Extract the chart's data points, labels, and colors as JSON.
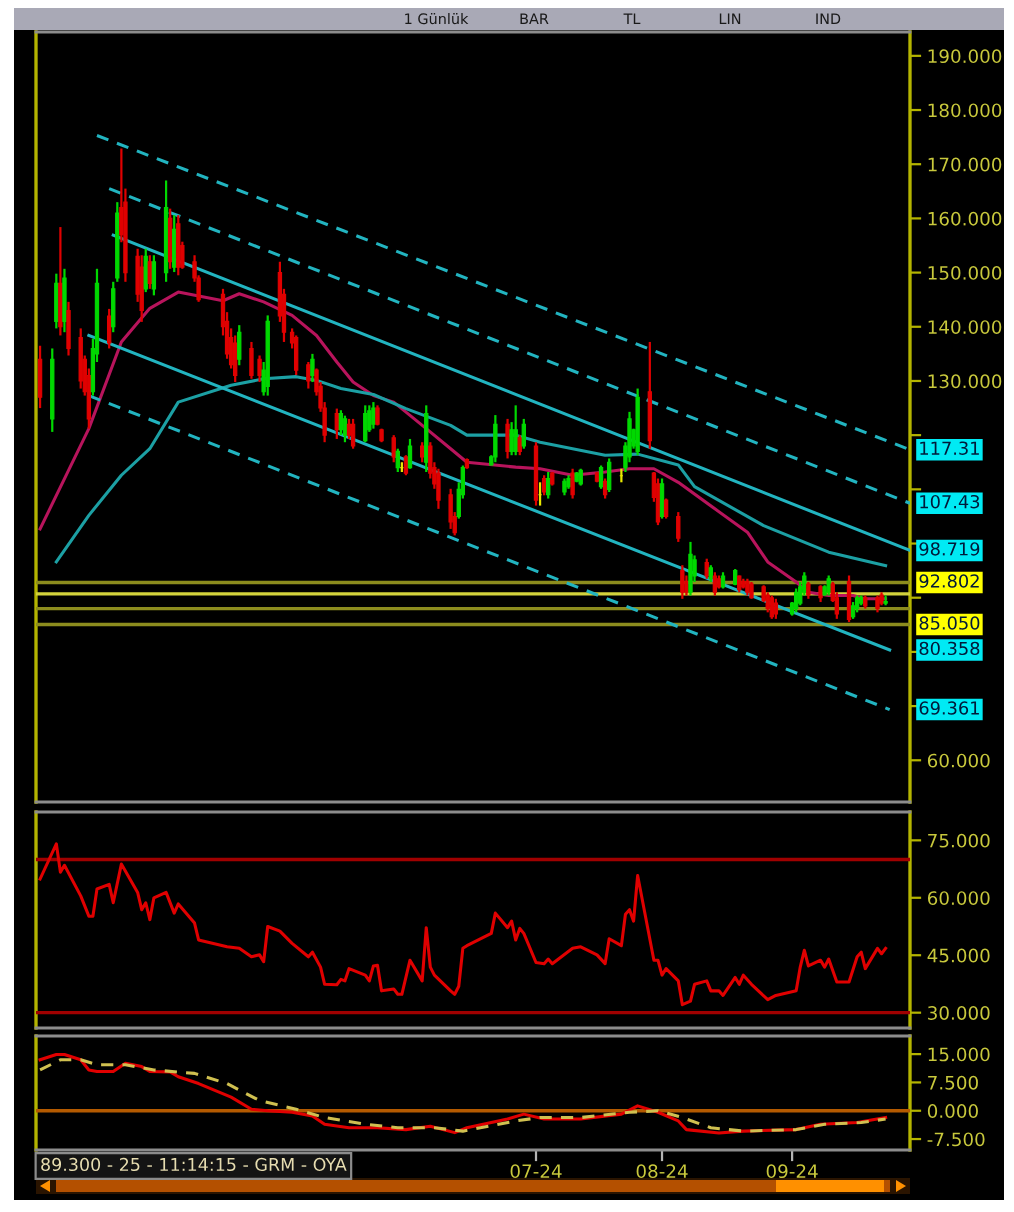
{
  "chart_data": [
    {
      "type": "candlestick",
      "x": [
        "2024-03-01",
        "2024-03-04",
        "2024-03-05",
        "2024-03-06",
        "2024-03-07",
        "2024-03-08",
        "2024-03-11",
        "2024-03-12",
        "2024-03-13",
        "2024-03-14",
        "2024-03-15",
        "2024-03-18",
        "2024-03-19",
        "2024-03-20",
        "2024-03-21",
        "2024-03-22",
        "2024-03-25",
        "2024-03-26",
        "2024-03-27",
        "2024-03-28",
        "2024-03-29",
        "2024-04-01",
        "2024-04-02",
        "2024-04-03",
        "2024-04-04",
        "2024-04-05",
        "2024-04-08",
        "2024-04-09",
        "2024-04-15",
        "2024-04-16",
        "2024-04-17",
        "2024-04-18",
        "2024-04-19",
        "2024-04-22",
        "2024-04-24",
        "2024-04-25",
        "2024-04-26",
        "2024-04-29",
        "2024-04-30",
        "2024-05-02",
        "2024-05-03",
        "2024-05-06",
        "2024-05-07",
        "2024-05-08",
        "2024-05-09",
        "2024-05-10",
        "2024-05-13",
        "2024-05-14",
        "2024-05-15",
        "2024-05-16",
        "2024-05-17",
        "2024-05-20",
        "2024-05-21",
        "2024-05-22",
        "2024-05-23",
        "2024-05-24",
        "2024-05-27",
        "2024-05-28",
        "2024-05-29",
        "2024-05-30",
        "2024-05-31",
        "2024-06-03",
        "2024-06-04",
        "2024-06-05",
        "2024-06-06",
        "2024-06-07",
        "2024-06-10",
        "2024-06-11",
        "2024-06-12",
        "2024-06-13",
        "2024-06-14",
        "2024-06-20",
        "2024-06-21",
        "2024-06-24",
        "2024-06-25",
        "2024-06-26",
        "2024-06-27",
        "2024-06-28",
        "2024-07-01",
        "2024-07-02",
        "2024-07-03",
        "2024-07-04",
        "2024-07-05",
        "2024-07-08",
        "2024-07-09",
        "2024-07-10",
        "2024-07-11",
        "2024-07-12",
        "2024-07-16",
        "2024-07-17",
        "2024-07-18",
        "2024-07-19",
        "2024-07-22",
        "2024-07-23",
        "2024-07-24",
        "2024-07-25",
        "2024-07-26",
        "2024-07-29",
        "2024-07-30",
        "2024-07-31",
        "2024-08-01",
        "2024-08-02",
        "2024-08-05",
        "2024-08-06",
        "2024-08-07",
        "2024-08-08",
        "2024-08-09",
        "2024-08-12",
        "2024-08-13",
        "2024-08-14",
        "2024-08-15",
        "2024-08-16",
        "2024-08-19",
        "2024-08-20",
        "2024-08-21",
        "2024-08-22",
        "2024-08-23",
        "2024-08-26",
        "2024-08-27",
        "2024-08-28",
        "2024-08-29",
        "2024-09-02",
        "2024-09-03",
        "2024-09-04",
        "2024-09-05",
        "2024-09-06",
        "2024-09-09",
        "2024-09-10",
        "2024-09-11",
        "2024-09-12",
        "2024-09-13",
        "2024-09-16",
        "2024-09-17",
        "2024-09-18",
        "2024-09-19",
        "2024-09-20",
        "2024-09-23",
        "2024-09-24",
        "2024-09-25"
      ],
      "ohlc": [
        [
          134,
          136.5,
          125,
          127
        ],
        [
          123,
          136,
          120.6,
          134
        ],
        [
          141,
          149.8,
          139.7,
          148
        ],
        [
          148,
          158.4,
          138.4,
          140
        ],
        [
          141,
          150.7,
          139,
          149
        ],
        [
          143,
          144.6,
          134.7,
          136
        ],
        [
          138,
          139.7,
          128.6,
          130
        ],
        [
          134,
          134.7,
          127.3,
          128
        ],
        [
          131,
          132.3,
          121.2,
          123
        ],
        [
          128,
          137.8,
          127.3,
          136
        ],
        [
          135,
          150.7,
          133.5,
          148
        ],
        [
          142,
          143.3,
          136,
          137
        ],
        [
          140,
          148.3,
          139,
          147
        ],
        [
          149,
          163,
          148.3,
          161
        ],
        [
          162,
          172.9,
          155.6,
          157
        ],
        [
          163,
          165.5,
          148.3,
          150
        ],
        [
          153,
          154.4,
          144.6,
          146
        ],
        [
          151,
          153.2,
          140.9,
          143
        ],
        [
          147,
          154.4,
          146.4,
          153
        ],
        [
          152,
          153.2,
          147,
          148
        ],
        [
          147,
          153.2,
          145.8,
          152
        ],
        [
          150,
          167,
          148.3,
          162
        ],
        [
          160,
          161.8,
          150.7,
          152
        ],
        [
          151,
          160.6,
          150.1,
          158
        ],
        [
          159,
          160.6,
          149.5,
          151
        ],
        [
          155,
          155.7,
          150.7,
          151
        ],
        [
          152,
          153.2,
          148.3,
          149
        ],
        [
          149,
          149.5,
          144.6,
          145
        ],
        [
          146,
          147,
          138.4,
          140
        ],
        [
          141,
          142.7,
          134.1,
          135
        ],
        [
          138,
          139.7,
          132.3,
          133
        ],
        [
          137,
          138.4,
          129.8,
          131
        ],
        [
          134,
          140.3,
          132.9,
          139
        ],
        [
          136,
          137.2,
          130.4,
          131
        ],
        [
          134,
          134.7,
          129.8,
          131
        ],
        [
          128,
          133.5,
          127.3,
          132
        ],
        [
          129,
          142.1,
          127.3,
          141
        ],
        [
          150,
          152,
          140.9,
          142
        ],
        [
          146,
          147,
          137.2,
          139
        ],
        [
          139,
          139.7,
          136,
          137
        ],
        [
          138,
          138.4,
          131.1,
          132
        ],
        [
          133,
          133.5,
          128.6,
          130
        ],
        [
          131,
          135,
          129.8,
          134
        ],
        [
          132,
          132.3,
          127.3,
          128
        ],
        [
          129,
          129.8,
          124.3,
          125
        ],
        [
          125,
          126.1,
          118.7,
          120
        ],
        [
          124,
          124.9,
          119.3,
          121
        ],
        [
          121,
          124.6,
          120,
          124
        ],
        [
          120,
          123.6,
          118.7,
          123
        ],
        [
          122,
          123,
          119.3,
          120
        ],
        [
          122,
          123,
          117.5,
          118
        ],
        [
          119,
          125.5,
          118.7,
          124
        ],
        [
          121,
          125.5,
          120.6,
          124.5
        ],
        [
          122,
          126.1,
          121.2,
          125
        ],
        [
          125,
          125.5,
          121.8,
          122
        ],
        [
          121,
          121.2,
          118.7,
          119
        ],
        [
          119.5,
          120,
          115,
          116
        ],
        [
          114,
          117.5,
          113.2,
          117
        ],
        [
          114,
          115,
          113.2,
          114
        ],
        [
          116,
          116.3,
          112.6,
          113
        ],
        [
          114,
          119.3,
          113.8,
          118
        ],
        [
          118,
          118.7,
          115,
          116
        ],
        [
          115,
          125.5,
          113.2,
          124
        ],
        [
          118,
          118.7,
          112,
          113
        ],
        [
          114,
          115,
          110.1,
          111
        ],
        [
          113,
          113.8,
          106.4,
          108
        ],
        [
          109,
          110.1,
          102.7,
          104
        ],
        [
          105,
          105.8,
          101.5,
          102
        ],
        [
          105,
          111.3,
          104.6,
          110
        ],
        [
          109,
          114.4,
          108.3,
          114
        ],
        [
          115.5,
          115.7,
          113.8,
          114
        ],
        [
          114.5,
          116.3,
          114.4,
          116
        ],
        [
          116,
          123.7,
          115,
          122
        ],
        [
          122,
          123,
          115.7,
          117
        ],
        [
          117,
          122.4,
          116.3,
          121
        ],
        [
          117,
          125.5,
          116.3,
          121
        ],
        [
          119.5,
          120,
          116.3,
          117
        ],
        [
          118,
          123,
          117.5,
          122
        ],
        [
          118,
          118.7,
          107,
          108
        ],
        [
          109,
          111.3,
          107,
          109
        ],
        [
          112,
          112.6,
          108.9,
          109.5
        ],
        [
          109,
          113.2,
          108.3,
          112
        ],
        [
          113,
          113.2,
          110.7,
          111
        ],
        [
          109.5,
          112,
          108.9,
          111.5
        ],
        [
          110.5,
          112.6,
          110.1,
          112
        ],
        [
          113,
          113.8,
          108.3,
          109
        ],
        [
          111.5,
          113.2,
          111.3,
          113
        ],
        [
          111,
          113.8,
          110.7,
          113.5
        ],
        [
          113,
          113.2,
          111.3,
          111.5
        ],
        [
          110.5,
          114.4,
          110.1,
          114
        ],
        [
          111.5,
          112,
          108.3,
          109
        ],
        [
          110,
          115.7,
          109.5,
          115
        ],
        [
          112.5,
          113.8,
          111.3,
          112.5
        ],
        [
          114,
          118.7,
          113.2,
          118
        ],
        [
          116,
          124.3,
          115,
          123
        ],
        [
          118,
          121.2,
          117.5,
          121
        ],
        [
          117,
          128.6,
          116.3,
          127
        ],
        [
          128,
          137.2,
          117.5,
          119
        ],
        [
          113,
          113.2,
          107.7,
          108.5
        ],
        [
          111,
          112,
          103.4,
          104
        ],
        [
          105,
          112,
          104.6,
          111
        ],
        [
          108,
          108.3,
          104.6,
          105
        ],
        [
          105,
          105.8,
          100.3,
          101
        ],
        [
          95,
          96,
          89.8,
          91
        ],
        [
          93,
          94.1,
          90.4,
          91
        ],
        [
          91,
          100.3,
          90.4,
          98
        ],
        [
          94,
          97.8,
          92.9,
          97
        ],
        [
          96.5,
          97.2,
          93.5,
          94
        ],
        [
          93.5,
          96,
          92.9,
          95.5
        ],
        [
          94,
          94.7,
          90.4,
          91
        ],
        [
          93.5,
          94.1,
          91.7,
          92
        ],
        [
          92,
          94.7,
          91.7,
          94
        ],
        [
          92.5,
          95.3,
          92.3,
          95
        ],
        [
          94,
          94.1,
          91,
          91.5
        ],
        [
          93,
          93.5,
          91.7,
          92
        ],
        [
          93,
          93.5,
          90.4,
          91
        ],
        [
          92.5,
          92.9,
          89.8,
          90
        ],
        [
          92,
          92.3,
          89.2,
          89.5
        ],
        [
          90.5,
          91,
          87.3,
          88
        ],
        [
          90,
          90.4,
          86.1,
          86.5
        ],
        [
          89,
          89.8,
          86.1,
          87
        ],
        [
          87,
          89.2,
          86.7,
          89
        ],
        [
          88,
          91.7,
          87.3,
          91
        ],
        [
          89,
          92.9,
          88.6,
          92
        ],
        [
          91,
          94.7,
          90.4,
          94
        ],
        [
          92.5,
          92.9,
          89.8,
          90.5
        ],
        [
          92,
          92.3,
          89.2,
          90
        ],
        [
          90.5,
          92.3,
          90.4,
          92
        ],
        [
          91,
          94.1,
          90.4,
          93.5
        ],
        [
          92.5,
          92.9,
          89.2,
          89.5
        ],
        [
          90,
          91,
          86.1,
          87
        ],
        [
          93,
          94.1,
          85.5,
          86
        ],
        [
          86.5,
          89.2,
          86.1,
          88.5
        ],
        [
          88,
          90.4,
          87.3,
          90
        ],
        [
          89,
          90.4,
          88.6,
          90
        ],
        [
          90,
          90.4,
          88,
          88.5
        ],
        [
          90,
          90.4,
          87.3,
          88
        ],
        [
          90.5,
          91,
          88.6,
          89
        ],
        [
          89,
          90.4,
          88.6,
          89.3
        ]
      ],
      "colors": [
        "#e00000",
        "#00d800",
        "#00d800",
        "#e00000",
        "#00d800",
        "#e00000",
        "#e00000",
        "#e00000",
        "#e00000",
        "#00d800",
        "#00d800",
        "#e00000",
        "#00d800",
        "#00d800",
        "#e00000",
        "#e00000",
        "#e00000",
        "#e00000",
        "#00d800",
        "#e00000",
        "#00d800",
        "#00d800",
        "#e00000",
        "#00d800",
        "#e00000",
        "#e00000",
        "#e00000",
        "#e00000",
        "#e00000",
        "#e00000",
        "#e00000",
        "#e00000",
        "#00d800",
        "#e00000",
        "#e00000",
        "#00d800",
        "#00d800",
        "#e00000",
        "#e00000",
        "#e00000",
        "#e00000",
        "#e00000",
        "#00d800",
        "#e00000",
        "#e00000",
        "#e00000",
        "#e00000",
        "#00d800",
        "#00d800",
        "#e00000",
        "#e00000",
        "#00d800",
        "#00d800",
        "#00d800",
        "#e00000",
        "#e00000",
        "#e00000",
        "#00d800",
        "#e8e800",
        "#e00000",
        "#00d800",
        "#e00000",
        "#00d800",
        "#e00000",
        "#e00000",
        "#e00000",
        "#e00000",
        "#e00000",
        "#00d800",
        "#00d800",
        "#e00000",
        "#00d800",
        "#00d800",
        "#e00000",
        "#00d800",
        "#00d800",
        "#e00000",
        "#00d800",
        "#e00000",
        "#e8e800",
        "#e00000",
        "#00d800",
        "#e00000",
        "#00d800",
        "#00d800",
        "#e00000",
        "#00d800",
        "#00d800",
        "#e00000",
        "#00d800",
        "#e00000",
        "#00d800",
        "#e8e800",
        "#00d800",
        "#00d800",
        "#00d800",
        "#00d800",
        "#e00000",
        "#e00000",
        "#e00000",
        "#00d800",
        "#e00000",
        "#e00000",
        "#e00000",
        "#e00000",
        "#00d800",
        "#00d800",
        "#e00000",
        "#00d800",
        "#e00000",
        "#e00000",
        "#00d800",
        "#00d800",
        "#e00000",
        "#e00000",
        "#e00000",
        "#e00000",
        "#e00000",
        "#e00000",
        "#e00000",
        "#e00000",
        "#00d800",
        "#00d800",
        "#00d800",
        "#00d800",
        "#e00000",
        "#e00000",
        "#00d800",
        "#00d800",
        "#e00000",
        "#e00000",
        "#e00000",
        "#00d800",
        "#00d800",
        "#00d800",
        "#e00000",
        "#e00000",
        "#e00000",
        "#00d800"
      ],
      "series": [
        {
          "type": "line",
          "color": "#b8145c",
          "x": [
            "2024-03-01",
            "2024-03-13",
            "2024-03-21",
            "2024-03-28",
            "2024-04-04",
            "2024-04-15",
            "2024-04-19",
            "2024-04-25",
            "2024-05-02",
            "2024-05-08",
            "2024-05-13",
            "2024-05-17",
            "2024-05-22",
            "2024-05-27",
            "2024-06-04",
            "2024-06-10",
            "2024-06-14",
            "2024-06-26",
            "2024-07-02",
            "2024-07-10",
            "2024-07-18",
            "2024-07-24",
            "2024-07-30",
            "2024-08-05",
            "2024-08-14",
            "2024-08-22",
            "2024-08-27",
            "2024-09-03",
            "2024-09-06",
            "2024-09-11",
            "2024-09-17",
            "2024-09-20",
            "2024-09-25"
          ],
          "values": [
            102.7,
            121.2,
            137.2,
            143.4,
            146.4,
            144.8,
            146.1,
            144.6,
            142.1,
            138.4,
            133.5,
            129.8,
            127.3,
            126.1,
            121.2,
            117.5,
            115,
            114.1,
            113.8,
            112.6,
            113.2,
            113.8,
            113.8,
            111.3,
            106.4,
            102.1,
            96.6,
            92.9,
            91,
            90.4,
            90.4,
            89.8,
            89.8
          ]
        },
        {
          "type": "line",
          "color": "#1ca0a4",
          "x": [
            "2024-03-05",
            "2024-03-13",
            "2024-03-21",
            "2024-03-28",
            "2024-04-04",
            "2024-04-17",
            "2024-04-25",
            "2024-05-03",
            "2024-05-08",
            "2024-05-14",
            "2024-05-22",
            "2024-05-30",
            "2024-06-10",
            "2024-06-14",
            "2024-06-26",
            "2024-07-02",
            "2024-07-10",
            "2024-07-18",
            "2024-07-26",
            "2024-08-05",
            "2024-08-09",
            "2024-08-26",
            "2024-09-11",
            "2024-09-25"
          ],
          "values": [
            96.6,
            105.2,
            112.6,
            117.5,
            126.1,
            129.2,
            130.4,
            130.8,
            130.1,
            128.6,
            127.5,
            124.9,
            121.8,
            120,
            120,
            118.7,
            117.5,
            116.3,
            116.5,
            114.5,
            110.5,
            103.3,
            98.4,
            95.9
          ]
        },
        {
          "type": "line",
          "color": "#22b4c0",
          "line_style": "dashed",
          "x": [
            "2024-03-15",
            "2024-10-01"
          ],
          "values": [
            175.3,
            117.31
          ],
          "value_labels": [
            null,
            "117.31"
          ]
        },
        {
          "type": "line",
          "color": "#22b4c0",
          "line_style": "dashed",
          "x": [
            "2024-03-18",
            "2024-10-01"
          ],
          "values": [
            165.5,
            107.43
          ],
          "value_labels": [
            null,
            "107.43"
          ]
        },
        {
          "type": "line",
          "color": "#22b4c0",
          "line_style": "solid",
          "x": [
            "2024-03-19",
            "2024-10-01"
          ],
          "values": [
            156.9,
            98.719
          ],
          "value_labels": [
            null,
            "98.719"
          ]
        },
        {
          "type": "line",
          "color": "#22b4c0",
          "line_style": "solid",
          "x": [
            "2024-03-13",
            "2024-09-26"
          ],
          "values": [
            138.4,
            80.358
          ],
          "value_labels": [
            null,
            "80.358"
          ]
        },
        {
          "type": "line",
          "color": "#22b4c0",
          "line_style": "dashed",
          "x": [
            "2024-03-13",
            "2024-09-26"
          ],
          "values": [
            127.3,
            69.361
          ],
          "value_labels": [
            null,
            "69.361"
          ]
        }
      ],
      "ref_lines": [
        {
          "axis": "y",
          "value": 92.802,
          "label": "92.802",
          "color": "#8c8c1e"
        },
        {
          "axis": "y",
          "value": 90.7,
          "color": "#d2d23c"
        },
        {
          "axis": "y",
          "value": 88.0,
          "color": "#8c8c1e"
        },
        {
          "axis": "y",
          "value": 85.05,
          "label": "85.050",
          "color": "#8c8c1e"
        }
      ],
      "xlim": [
        "2024-02-29",
        "2024-10-01"
      ],
      "ylim": [
        52.3,
        194.4
      ],
      "yticks": [
        {
          "value": 60,
          "label": "60.000"
        },
        {
          "value": 70,
          "label": null
        },
        {
          "value": 80,
          "label": null
        },
        {
          "value": 90,
          "label": null
        },
        {
          "value": 100,
          "label": null
        },
        {
          "value": 110,
          "label": null
        },
        {
          "value": 120,
          "label": null
        },
        {
          "value": 130,
          "label": "130.000"
        },
        {
          "value": 140,
          "label": "140.000"
        },
        {
          "value": 150,
          "label": "150.000"
        },
        {
          "value": 160,
          "label": "160.000"
        },
        {
          "value": 170,
          "label": "170.000"
        },
        {
          "value": 180,
          "label": "180.000"
        },
        {
          "value": 190,
          "label": "190.000"
        }
      ],
      "tick_labels": "y",
      "annotations": [
        "1 Günlük",
        "BAR",
        "TL",
        "LIN",
        "IND"
      ]
    },
    {
      "type": "line",
      "series": [
        {
          "color": "#e00000",
          "x": [
            "2024-03-01",
            "2024-03-05",
            "2024-03-06",
            "2024-03-07",
            "2024-03-11",
            "2024-03-13",
            "2024-03-14",
            "2024-03-15",
            "2024-03-18",
            "2024-03-19",
            "2024-03-21",
            "2024-03-25",
            "2024-03-26",
            "2024-03-27",
            "2024-03-28",
            "2024-03-29",
            "2024-04-01",
            "2024-04-03",
            "2024-04-04",
            "2024-04-08",
            "2024-04-09",
            "2024-04-16",
            "2024-04-19",
            "2024-04-22",
            "2024-04-24",
            "2024-04-25",
            "2024-04-26",
            "2024-04-29",
            "2024-05-02",
            "2024-05-06",
            "2024-05-07",
            "2024-05-09",
            "2024-05-10",
            "2024-05-13",
            "2024-05-14",
            "2024-05-15",
            "2024-05-16",
            "2024-05-20",
            "2024-05-21",
            "2024-05-22",
            "2024-05-23",
            "2024-05-24",
            "2024-05-27",
            "2024-05-28",
            "2024-05-29",
            "2024-05-31",
            "2024-06-03",
            "2024-06-04",
            "2024-06-05",
            "2024-06-06",
            "2024-06-10",
            "2024-06-11",
            "2024-06-12",
            "2024-06-13",
            "2024-06-14",
            "2024-06-20",
            "2024-06-21",
            "2024-06-24",
            "2024-06-25",
            "2024-06-26",
            "2024-06-27",
            "2024-06-28",
            "2024-07-01",
            "2024-07-03",
            "2024-07-04",
            "2024-07-05",
            "2024-07-10",
            "2024-07-12",
            "2024-07-16",
            "2024-07-18",
            "2024-07-19",
            "2024-07-22",
            "2024-07-23",
            "2024-07-24",
            "2024-07-25",
            "2024-07-26",
            "2024-07-30",
            "2024-07-31",
            "2024-08-01",
            "2024-08-02",
            "2024-08-05",
            "2024-08-06",
            "2024-08-08",
            "2024-08-09",
            "2024-08-12",
            "2024-08-13",
            "2024-08-15",
            "2024-08-16",
            "2024-08-19",
            "2024-08-20",
            "2024-08-21",
            "2024-08-23",
            "2024-08-27",
            "2024-08-29",
            "2024-09-03",
            "2024-09-04",
            "2024-09-05",
            "2024-09-06",
            "2024-09-09",
            "2024-09-10",
            "2024-09-11",
            "2024-09-13",
            "2024-09-16",
            "2024-09-18",
            "2024-09-19",
            "2024-09-20",
            "2024-09-23",
            "2024-09-24",
            "2024-09-25"
          ],
          "values": [
            64.9,
            74.1,
            66.7,
            68.5,
            60.5,
            55.2,
            55.2,
            62.3,
            63.5,
            58.7,
            68.8,
            61.4,
            56.9,
            58.7,
            54.3,
            60.0,
            61.4,
            56.0,
            58.4,
            53.4,
            49.0,
            47.2,
            46.8,
            44.6,
            45.1,
            43.3,
            52.5,
            51.3,
            48.1,
            44.6,
            45.8,
            41.9,
            37.4,
            37.3,
            38.7,
            38.3,
            41.5,
            39.8,
            38.3,
            42.2,
            42.4,
            35.7,
            36.2,
            34.8,
            34.8,
            43.7,
            38.3,
            52.2,
            41.9,
            39.8,
            35.7,
            34.8,
            36.9,
            46.8,
            47.5,
            50.7,
            56.0,
            52.2,
            53.9,
            49.0,
            52.0,
            50.7,
            43.1,
            42.8,
            44.0,
            42.8,
            46.8,
            47.2,
            45.1,
            42.8,
            49.3,
            47.5,
            55.7,
            56.9,
            53.9,
            65.8,
            43.7,
            43.7,
            39.8,
            41.5,
            38.3,
            32.1,
            33.0,
            37.4,
            38.3,
            35.7,
            35.7,
            34.5,
            39.2,
            37.4,
            39.8,
            37.4,
            33.4,
            34.5,
            35.7,
            41.9,
            46.3,
            42.2,
            43.7,
            41.9,
            44.0,
            38.0,
            38.0,
            44.6,
            45.8,
            41.5,
            46.8,
            45.4,
            46.8
          ]
        }
      ],
      "ref_lines": [
        {
          "axis": "y",
          "value": 70,
          "color": "#a00000"
        },
        {
          "axis": "y",
          "value": 30,
          "color": "#a00000"
        }
      ],
      "xlim": [
        "2024-02-29",
        "2024-10-01"
      ],
      "ylim": [
        26,
        82.4
      ],
      "yticks": [
        {
          "value": 30,
          "label": "30.000"
        },
        {
          "value": 45,
          "label": "45.000"
        },
        {
          "value": 60,
          "label": "60.000"
        },
        {
          "value": 75,
          "label": "75.000"
        }
      ],
      "tick_labels": "y"
    },
    {
      "type": "line",
      "series": [
        {
          "color": "#e00000",
          "x": [
            "2024-03-01",
            "2024-03-05",
            "2024-03-07",
            "2024-03-11",
            "2024-03-13",
            "2024-03-15",
            "2024-03-19",
            "2024-03-22",
            "2024-03-26",
            "2024-03-28",
            "2024-04-02",
            "2024-04-04",
            "2024-04-09",
            "2024-04-17",
            "2024-04-22",
            "2024-04-26",
            "2024-05-02",
            "2024-05-07",
            "2024-05-10",
            "2024-05-16",
            "2024-05-23",
            "2024-05-30",
            "2024-06-05",
            "2024-06-11",
            "2024-06-14",
            "2024-06-24",
            "2024-06-28",
            "2024-07-03",
            "2024-07-12",
            "2024-07-22",
            "2024-07-26",
            "2024-07-31",
            "2024-08-05",
            "2024-08-07",
            "2024-08-15",
            "2024-08-21",
            "2024-09-03",
            "2024-09-09",
            "2024-09-18",
            "2024-09-25"
          ],
          "values": [
            13.5,
            14.9,
            14.9,
            13.5,
            10.8,
            10.4,
            10.4,
            12.6,
            11.7,
            10.4,
            10.3,
            9.0,
            7.2,
            3.6,
            0.4,
            0,
            -0.4,
            -1.4,
            -3.6,
            -4.5,
            -4.5,
            -5.0,
            -4.1,
            -5.8,
            -4.5,
            -2.2,
            -0.9,
            -2.2,
            -2.2,
            -0.9,
            1.3,
            -0.4,
            -2.7,
            -5.0,
            -5.9,
            -5.4,
            -5.0,
            -3.6,
            -3.1,
            -1.8
          ]
        },
        {
          "color": "#d0c050",
          "line_style": "dashed",
          "x": [
            "2024-03-01",
            "2024-03-06",
            "2024-03-11",
            "2024-03-15",
            "2024-03-22",
            "2024-03-29",
            "2024-04-08",
            "2024-04-16",
            "2024-04-24",
            "2024-05-03",
            "2024-05-10",
            "2024-05-20",
            "2024-05-28",
            "2024-06-06",
            "2024-06-13",
            "2024-06-26",
            "2024-07-02",
            "2024-07-12",
            "2024-07-24",
            "2024-07-31",
            "2024-08-06",
            "2024-08-13",
            "2024-08-21",
            "2024-09-03",
            "2024-09-10",
            "2024-09-19",
            "2024-09-25"
          ],
          "values": [
            10.8,
            13.5,
            13.5,
            12.2,
            12.2,
            10.8,
            9.9,
            7.2,
            2.7,
            0.4,
            -1.8,
            -3.6,
            -4.5,
            -4.5,
            -5.4,
            -2.7,
            -1.8,
            -1.8,
            -0.4,
            0,
            -1.8,
            -4.5,
            -5.4,
            -5.0,
            -3.6,
            -3.1,
            -2.2
          ]
        }
      ],
      "ref_lines": [
        {
          "axis": "y",
          "value": 0,
          "color": "#b45a00"
        }
      ],
      "xlim": [
        "2024-02-29",
        "2024-10-01"
      ],
      "ylim": [
        -10.4,
        19.8
      ],
      "yticks": [
        {
          "value": -7.5,
          "label": "-7.500"
        },
        {
          "value": 0,
          "label": "0.000"
        },
        {
          "value": 7.5,
          "label": "7.500"
        },
        {
          "value": 15,
          "label": "15.000"
        }
      ],
      "xticks": [
        {
          "value": "2024-07-01",
          "label": "07-24"
        },
        {
          "value": "2024-08-01",
          "label": "08-24"
        },
        {
          "value": "2024-09-02",
          "label": "09-24"
        }
      ],
      "annotations": [
        "89.300 - 25 - 11:14:15 - GRM - OYA"
      ]
    }
  ]
}
